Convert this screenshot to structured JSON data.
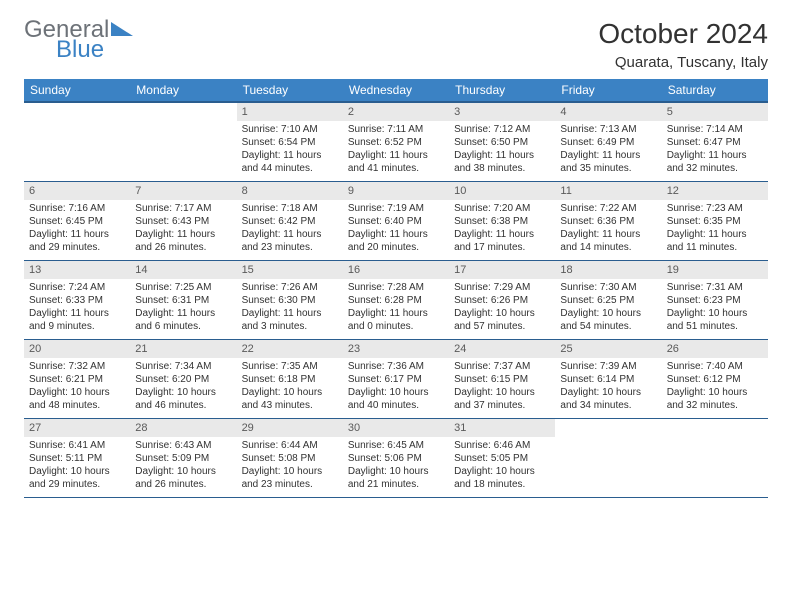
{
  "logo": {
    "text1": "General",
    "text2": "Blue"
  },
  "title": "October 2024",
  "subtitle": "Quarata, Tuscany, Italy",
  "colors": {
    "header_bg": "#3b82c4",
    "header_border": "#2a5d8f",
    "daynum_bg": "#e9e9e9",
    "text": "#323232",
    "logo_gray": "#6d7278",
    "logo_blue": "#3b82c4",
    "page_bg": "#ffffff"
  },
  "day_names": [
    "Sunday",
    "Monday",
    "Tuesday",
    "Wednesday",
    "Thursday",
    "Friday",
    "Saturday"
  ],
  "weeks": [
    [
      {
        "n": "",
        "l1": "",
        "l2": "",
        "l3": "",
        "l4": ""
      },
      {
        "n": "",
        "l1": "",
        "l2": "",
        "l3": "",
        "l4": ""
      },
      {
        "n": "1",
        "l1": "Sunrise: 7:10 AM",
        "l2": "Sunset: 6:54 PM",
        "l3": "Daylight: 11 hours",
        "l4": "and 44 minutes."
      },
      {
        "n": "2",
        "l1": "Sunrise: 7:11 AM",
        "l2": "Sunset: 6:52 PM",
        "l3": "Daylight: 11 hours",
        "l4": "and 41 minutes."
      },
      {
        "n": "3",
        "l1": "Sunrise: 7:12 AM",
        "l2": "Sunset: 6:50 PM",
        "l3": "Daylight: 11 hours",
        "l4": "and 38 minutes."
      },
      {
        "n": "4",
        "l1": "Sunrise: 7:13 AM",
        "l2": "Sunset: 6:49 PM",
        "l3": "Daylight: 11 hours",
        "l4": "and 35 minutes."
      },
      {
        "n": "5",
        "l1": "Sunrise: 7:14 AM",
        "l2": "Sunset: 6:47 PM",
        "l3": "Daylight: 11 hours",
        "l4": "and 32 minutes."
      }
    ],
    [
      {
        "n": "6",
        "l1": "Sunrise: 7:16 AM",
        "l2": "Sunset: 6:45 PM",
        "l3": "Daylight: 11 hours",
        "l4": "and 29 minutes."
      },
      {
        "n": "7",
        "l1": "Sunrise: 7:17 AM",
        "l2": "Sunset: 6:43 PM",
        "l3": "Daylight: 11 hours",
        "l4": "and 26 minutes."
      },
      {
        "n": "8",
        "l1": "Sunrise: 7:18 AM",
        "l2": "Sunset: 6:42 PM",
        "l3": "Daylight: 11 hours",
        "l4": "and 23 minutes."
      },
      {
        "n": "9",
        "l1": "Sunrise: 7:19 AM",
        "l2": "Sunset: 6:40 PM",
        "l3": "Daylight: 11 hours",
        "l4": "and 20 minutes."
      },
      {
        "n": "10",
        "l1": "Sunrise: 7:20 AM",
        "l2": "Sunset: 6:38 PM",
        "l3": "Daylight: 11 hours",
        "l4": "and 17 minutes."
      },
      {
        "n": "11",
        "l1": "Sunrise: 7:22 AM",
        "l2": "Sunset: 6:36 PM",
        "l3": "Daylight: 11 hours",
        "l4": "and 14 minutes."
      },
      {
        "n": "12",
        "l1": "Sunrise: 7:23 AM",
        "l2": "Sunset: 6:35 PM",
        "l3": "Daylight: 11 hours",
        "l4": "and 11 minutes."
      }
    ],
    [
      {
        "n": "13",
        "l1": "Sunrise: 7:24 AM",
        "l2": "Sunset: 6:33 PM",
        "l3": "Daylight: 11 hours",
        "l4": "and 9 minutes."
      },
      {
        "n": "14",
        "l1": "Sunrise: 7:25 AM",
        "l2": "Sunset: 6:31 PM",
        "l3": "Daylight: 11 hours",
        "l4": "and 6 minutes."
      },
      {
        "n": "15",
        "l1": "Sunrise: 7:26 AM",
        "l2": "Sunset: 6:30 PM",
        "l3": "Daylight: 11 hours",
        "l4": "and 3 minutes."
      },
      {
        "n": "16",
        "l1": "Sunrise: 7:28 AM",
        "l2": "Sunset: 6:28 PM",
        "l3": "Daylight: 11 hours",
        "l4": "and 0 minutes."
      },
      {
        "n": "17",
        "l1": "Sunrise: 7:29 AM",
        "l2": "Sunset: 6:26 PM",
        "l3": "Daylight: 10 hours",
        "l4": "and 57 minutes."
      },
      {
        "n": "18",
        "l1": "Sunrise: 7:30 AM",
        "l2": "Sunset: 6:25 PM",
        "l3": "Daylight: 10 hours",
        "l4": "and 54 minutes."
      },
      {
        "n": "19",
        "l1": "Sunrise: 7:31 AM",
        "l2": "Sunset: 6:23 PM",
        "l3": "Daylight: 10 hours",
        "l4": "and 51 minutes."
      }
    ],
    [
      {
        "n": "20",
        "l1": "Sunrise: 7:32 AM",
        "l2": "Sunset: 6:21 PM",
        "l3": "Daylight: 10 hours",
        "l4": "and 48 minutes."
      },
      {
        "n": "21",
        "l1": "Sunrise: 7:34 AM",
        "l2": "Sunset: 6:20 PM",
        "l3": "Daylight: 10 hours",
        "l4": "and 46 minutes."
      },
      {
        "n": "22",
        "l1": "Sunrise: 7:35 AM",
        "l2": "Sunset: 6:18 PM",
        "l3": "Daylight: 10 hours",
        "l4": "and 43 minutes."
      },
      {
        "n": "23",
        "l1": "Sunrise: 7:36 AM",
        "l2": "Sunset: 6:17 PM",
        "l3": "Daylight: 10 hours",
        "l4": "and 40 minutes."
      },
      {
        "n": "24",
        "l1": "Sunrise: 7:37 AM",
        "l2": "Sunset: 6:15 PM",
        "l3": "Daylight: 10 hours",
        "l4": "and 37 minutes."
      },
      {
        "n": "25",
        "l1": "Sunrise: 7:39 AM",
        "l2": "Sunset: 6:14 PM",
        "l3": "Daylight: 10 hours",
        "l4": "and 34 minutes."
      },
      {
        "n": "26",
        "l1": "Sunrise: 7:40 AM",
        "l2": "Sunset: 6:12 PM",
        "l3": "Daylight: 10 hours",
        "l4": "and 32 minutes."
      }
    ],
    [
      {
        "n": "27",
        "l1": "Sunrise: 6:41 AM",
        "l2": "Sunset: 5:11 PM",
        "l3": "Daylight: 10 hours",
        "l4": "and 29 minutes."
      },
      {
        "n": "28",
        "l1": "Sunrise: 6:43 AM",
        "l2": "Sunset: 5:09 PM",
        "l3": "Daylight: 10 hours",
        "l4": "and 26 minutes."
      },
      {
        "n": "29",
        "l1": "Sunrise: 6:44 AM",
        "l2": "Sunset: 5:08 PM",
        "l3": "Daylight: 10 hours",
        "l4": "and 23 minutes."
      },
      {
        "n": "30",
        "l1": "Sunrise: 6:45 AM",
        "l2": "Sunset: 5:06 PM",
        "l3": "Daylight: 10 hours",
        "l4": "and 21 minutes."
      },
      {
        "n": "31",
        "l1": "Sunrise: 6:46 AM",
        "l2": "Sunset: 5:05 PM",
        "l3": "Daylight: 10 hours",
        "l4": "and 18 minutes."
      },
      {
        "n": "",
        "l1": "",
        "l2": "",
        "l3": "",
        "l4": ""
      },
      {
        "n": "",
        "l1": "",
        "l2": "",
        "l3": "",
        "l4": ""
      }
    ]
  ]
}
